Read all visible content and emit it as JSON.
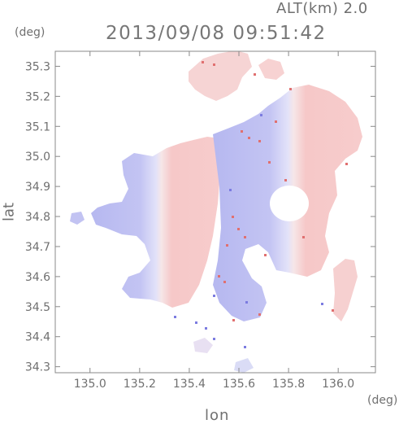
{
  "header": {
    "altitude_label": "ALT(km) 2.0",
    "timestamp": "2013/09/08 09:51:42"
  },
  "axes": {
    "y_unit": "(deg)",
    "x_unit": "(deg)",
    "y_label": "lat",
    "x_label": "lon",
    "x_ticks": [
      {
        "value": 135.0,
        "label": "135.0"
      },
      {
        "value": 135.2,
        "label": "135.2"
      },
      {
        "value": 135.4,
        "label": "135.4"
      },
      {
        "value": 135.6,
        "label": "135.6"
      },
      {
        "value": 135.8,
        "label": "135.8"
      },
      {
        "value": 136.0,
        "label": "136.0"
      }
    ],
    "y_ticks": [
      {
        "value": 34.3,
        "label": "34.3"
      },
      {
        "value": 34.4,
        "label": "34.4"
      },
      {
        "value": 34.5,
        "label": "34.5"
      },
      {
        "value": 34.6,
        "label": "34.6"
      },
      {
        "value": 34.7,
        "label": "34.7"
      },
      {
        "value": 34.8,
        "label": "34.8"
      },
      {
        "value": 34.9,
        "label": "34.9"
      },
      {
        "value": 35.0,
        "label": "35.0"
      },
      {
        "value": 35.1,
        "label": "35.1"
      },
      {
        "value": 35.2,
        "label": "35.2"
      },
      {
        "value": 35.3,
        "label": "35.3"
      }
    ],
    "x_range": [
      134.86,
      136.15
    ],
    "y_range": [
      34.28,
      35.35
    ],
    "grid": false
  },
  "map": {
    "type": "doppler-velocity-field",
    "colors": {
      "approaching": "#b9bbf2",
      "approaching_light": "#dcdcf8",
      "receding": "#f7c6c6",
      "receding_strong": "#f4aeae",
      "speckle_red": "#e07070",
      "speckle_blue": "#7c7ce0",
      "axis": "#808080"
    }
  }
}
